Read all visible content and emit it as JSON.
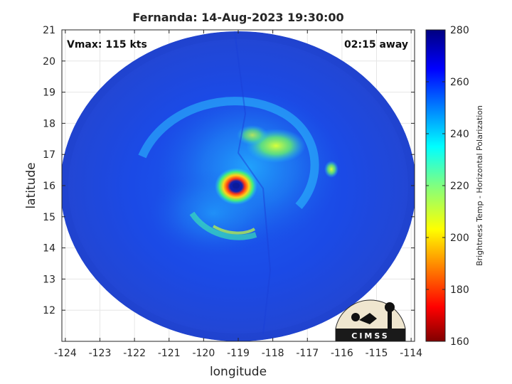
{
  "title": "Fernanda: 14-Aug-2023 19:30:00",
  "xlabel": "longitude",
  "ylabel": "latitude",
  "annotations": {
    "vmax": "Vmax: 115 kts",
    "time_away": "02:15 away"
  },
  "x_ticks": [
    "-124",
    "-123",
    "-122",
    "-121",
    "-120",
    "-119",
    "-118",
    "-117",
    "-116",
    "-115",
    "-114"
  ],
  "y_ticks": [
    "12",
    "13",
    "14",
    "15",
    "16",
    "17",
    "18",
    "19",
    "20",
    "21"
  ],
  "colorbar": {
    "label": "Brightness Temp - Horizontal Polarization",
    "ticks": [
      "160",
      "180",
      "200",
      "220",
      "240",
      "260",
      "280"
    ],
    "range": [
      160,
      280
    ],
    "colormap": "jet"
  },
  "logo": {
    "text": "CIMSS"
  },
  "colors": {
    "disk_base": "#1b46e8",
    "eyewall": "#e0301a",
    "eye": "#0a1a9a"
  },
  "storm": {
    "eye_lon": -119.0,
    "eye_lat": 16.05
  }
}
